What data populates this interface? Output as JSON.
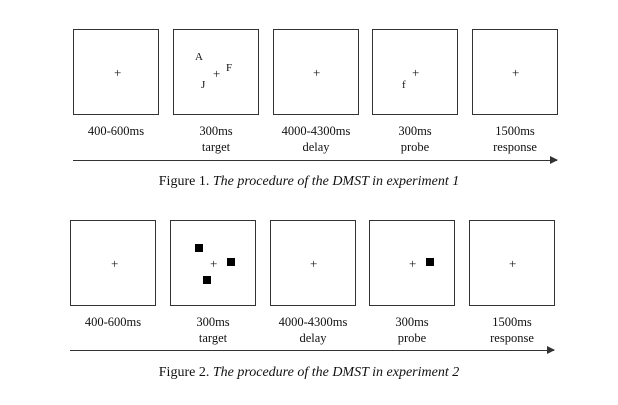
{
  "figure1": {
    "caption_prefix": "Figure 1.",
    "caption_title": "The procedure of the DMST in experiment 1",
    "fixation": "+",
    "target_letters": [
      "A",
      "F",
      "J"
    ],
    "probe_letter": "f",
    "labels": [
      {
        "line1": "400-600ms",
        "line2": ""
      },
      {
        "line1": "300ms",
        "line2": "target"
      },
      {
        "line1": "4000-4300ms",
        "line2": "delay"
      },
      {
        "line1": "300ms",
        "line2": "probe"
      },
      {
        "line1": "1500ms",
        "line2": "response"
      }
    ]
  },
  "figure2": {
    "caption_prefix": "Figure 2.",
    "caption_title": "The procedure of the DMST in experiment 2",
    "fixation": "+",
    "labels": [
      {
        "line1": "400-600ms",
        "line2": ""
      },
      {
        "line1": "300ms",
        "line2": "target"
      },
      {
        "line1": "4000-4300ms",
        "line2": "delay"
      },
      {
        "line1": "300ms",
        "line2": "probe"
      },
      {
        "line1": "1500ms",
        "line2": "response"
      }
    ]
  }
}
